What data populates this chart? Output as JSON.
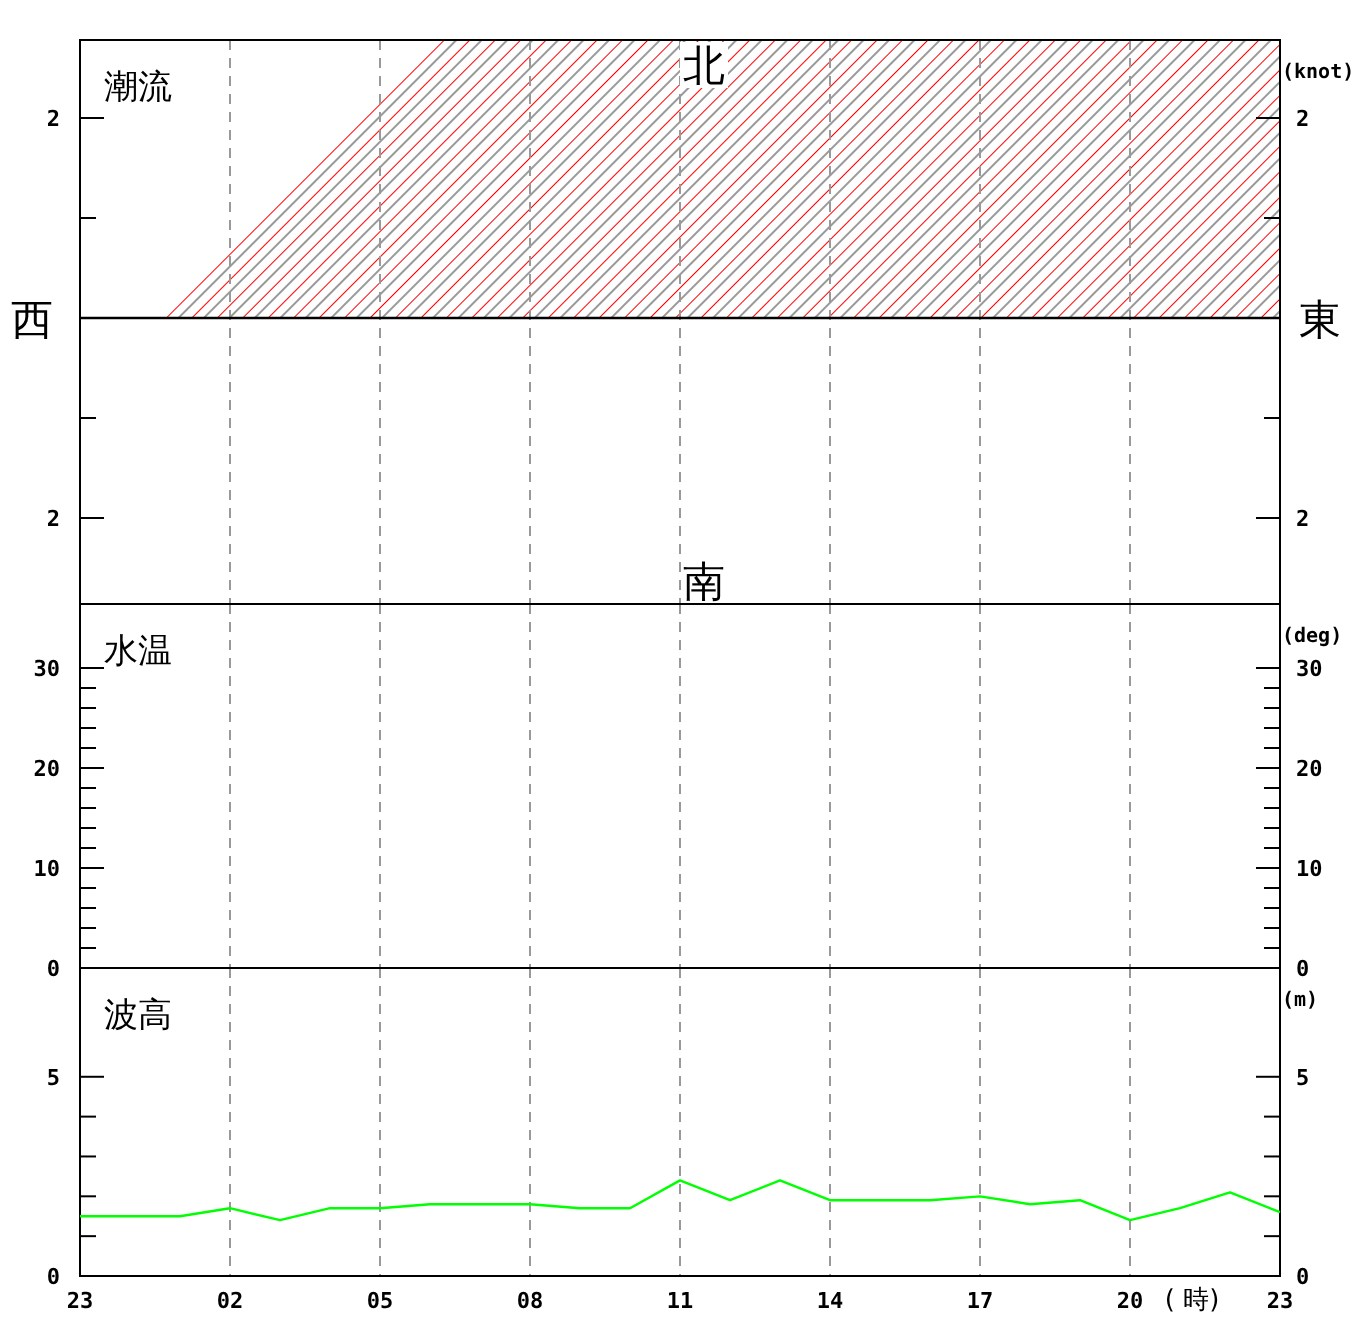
{
  "chart_data": [
    {
      "type": "line",
      "title": "潮流",
      "y2label": "(knot)",
      "annotations": [
        "北",
        "南",
        "西",
        "東"
      ],
      "categories": [
        "23",
        null,
        null,
        "02",
        null,
        null,
        "05",
        null,
        null,
        "08",
        null,
        null,
        "11",
        null,
        null,
        "14",
        null,
        null,
        "17",
        null,
        null,
        "20",
        null,
        null,
        "23"
      ],
      "values": [
        null,
        null,
        null,
        null,
        null,
        null,
        null,
        null,
        null,
        null,
        null,
        null,
        null,
        null,
        null,
        null,
        null,
        null,
        null,
        null,
        null,
        null,
        null,
        null,
        null
      ],
      "ylim": [
        -2.86,
        2.78
      ],
      "yticks": [
        {
          "value": -2,
          "label": "2"
        },
        {
          "value": -1,
          "label": null
        },
        {
          "value": 1,
          "label": null
        },
        {
          "value": 2,
          "label": "2"
        }
      ],
      "y2lim": [
        -2.86,
        2.78
      ],
      "y2ticks": [
        {
          "value": -2,
          "label": "2"
        },
        {
          "value": -1,
          "label": null
        },
        {
          "value": 1,
          "label": null
        },
        {
          "value": 2,
          "label": "2"
        }
      ],
      "ref_lines": [
        {
          "axis": "y",
          "value": 0,
          "color": "#000000"
        }
      ],
      "bands": [
        {
          "axis": "y",
          "from": 0,
          "to": 2.78,
          "color": "#ff0000"
        }
      ],
      "grid": "x",
      "tick_labels": "y"
    },
    {
      "type": "line",
      "title": "水温",
      "y2label": "(deg)",
      "categories": [
        "23",
        null,
        null,
        "02",
        null,
        null,
        "05",
        null,
        null,
        "08",
        null,
        null,
        "11",
        null,
        null,
        "14",
        null,
        null,
        "17",
        null,
        null,
        "20",
        null,
        null,
        "23"
      ],
      "values": [
        null,
        null,
        null,
        null,
        null,
        null,
        null,
        null,
        null,
        null,
        null,
        null,
        null,
        null,
        null,
        null,
        null,
        null,
        null,
        null,
        null,
        null,
        null,
        null,
        null
      ],
      "ylim": [
        0,
        36.4
      ],
      "yticks": [
        0,
        {
          "value": 2,
          "label": null
        },
        {
          "value": 4,
          "label": null
        },
        {
          "value": 6,
          "label": null
        },
        {
          "value": 8,
          "label": null
        },
        10,
        {
          "value": 12,
          "label": null
        },
        {
          "value": 14,
          "label": null
        },
        {
          "value": 16,
          "label": null
        },
        {
          "value": 18,
          "label": null
        },
        20,
        {
          "value": 22,
          "label": null
        },
        {
          "value": 24,
          "label": null
        },
        {
          "value": 26,
          "label": null
        },
        {
          "value": 28,
          "label": null
        },
        30
      ],
      "y2lim": [
        0,
        36.4
      ],
      "y2ticks": [
        0,
        {
          "value": 2,
          "label": null
        },
        {
          "value": 4,
          "label": null
        },
        {
          "value": 6,
          "label": null
        },
        {
          "value": 8,
          "label": null
        },
        10,
        {
          "value": 12,
          "label": null
        },
        {
          "value": 14,
          "label": null
        },
        {
          "value": 16,
          "label": null
        },
        {
          "value": 18,
          "label": null
        },
        20,
        {
          "value": 22,
          "label": null
        },
        {
          "value": 24,
          "label": null
        },
        {
          "value": 26,
          "label": null
        },
        {
          "value": 28,
          "label": null
        },
        30
      ],
      "grid": "x",
      "tick_labels": "y"
    },
    {
      "type": "line",
      "title": "波高",
      "y2label": "(m)",
      "xlabel": "( 時)",
      "color": "#00ff00",
      "categories": [
        "23",
        null,
        null,
        "02",
        null,
        null,
        "05",
        null,
        null,
        "08",
        null,
        null,
        "11",
        null,
        null,
        "14",
        null,
        null,
        "17",
        null,
        null,
        "20",
        null,
        null,
        "23"
      ],
      "values": [
        1.5,
        1.5,
        1.5,
        1.7,
        1.4,
        1.7,
        1.7,
        1.8,
        1.8,
        1.8,
        1.7,
        1.7,
        2.4,
        1.9,
        2.4,
        1.9,
        1.9,
        1.9,
        2.0,
        1.8,
        1.9,
        1.4,
        1.7,
        2.1,
        1.6
      ],
      "ylim": [
        0,
        7.73
      ],
      "yticks": [
        0,
        {
          "value": 1,
          "label": null
        },
        {
          "value": 2,
          "label": null
        },
        {
          "value": 3,
          "label": null
        },
        {
          "value": 4,
          "label": null
        },
        5
      ],
      "y2lim": [
        0,
        7.73
      ],
      "y2ticks": [
        0,
        {
          "value": 1,
          "label": null
        },
        {
          "value": 2,
          "label": null
        },
        {
          "value": 3,
          "label": null
        },
        {
          "value": 4,
          "label": null
        },
        5
      ],
      "grid": "x"
    }
  ]
}
